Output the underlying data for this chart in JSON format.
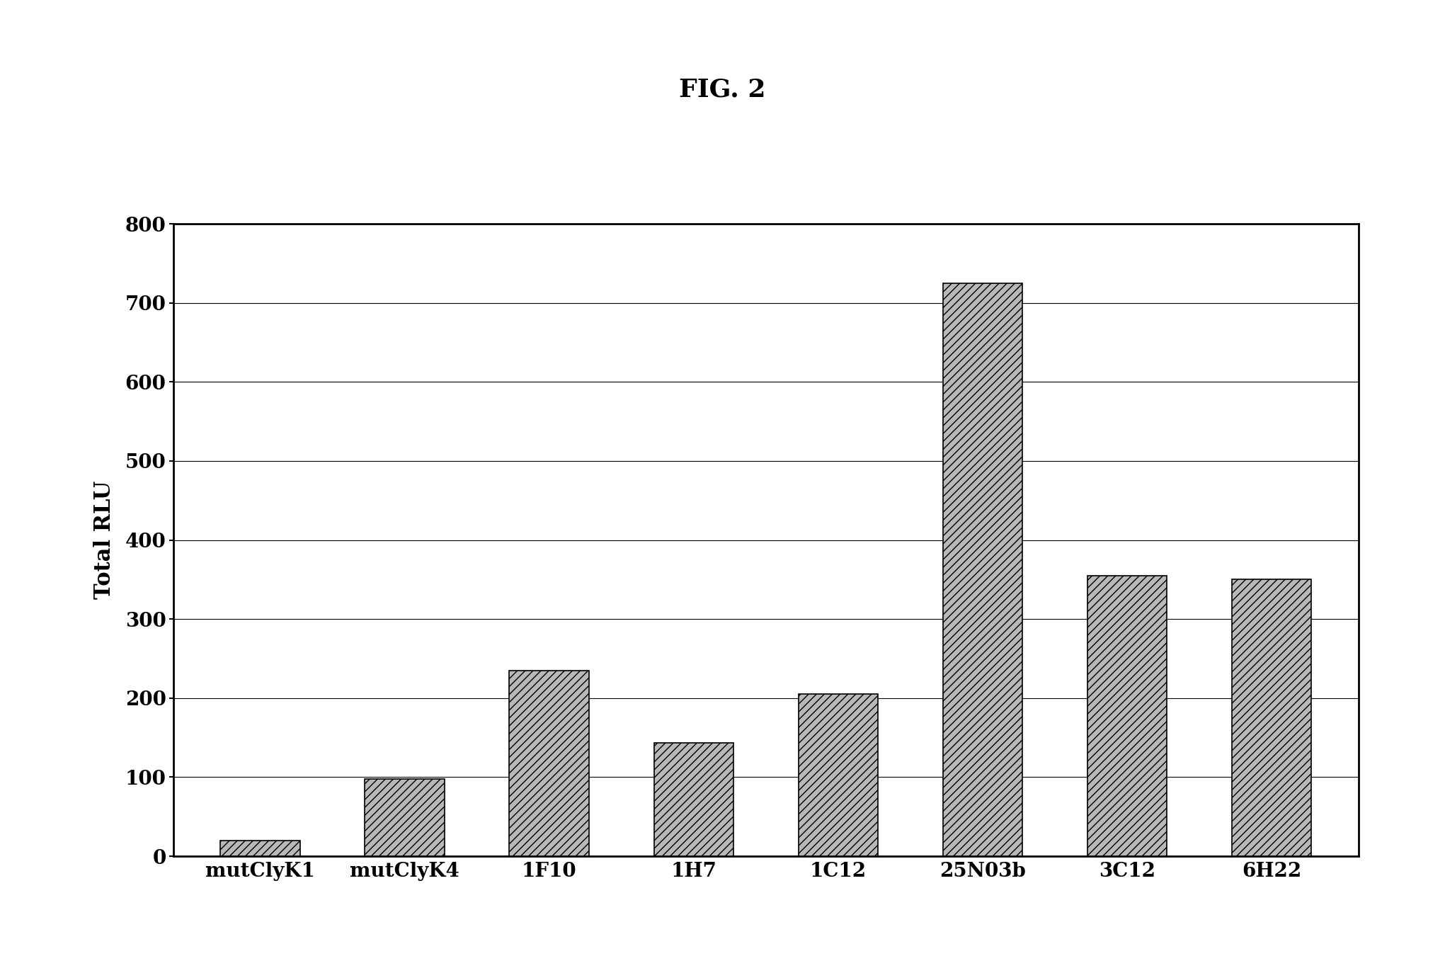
{
  "categories": [
    "mutClyK1",
    "mutClyK4",
    "1F10",
    "1H7",
    "1C12",
    "25N03b",
    "3C12",
    "6H22"
  ],
  "values": [
    20,
    98,
    235,
    143,
    205,
    725,
    355,
    350
  ],
  "bar_color": "#b8b8b8",
  "bar_hatch": "///",
  "title": "FIG. 2",
  "ylabel": "Total RLU",
  "ylim": [
    0,
    800
  ],
  "yticks": [
    0,
    100,
    200,
    300,
    400,
    500,
    600,
    700,
    800
  ],
  "background_color": "#ffffff",
  "plot_bg_color": "#ffffff",
  "title_fontsize": 26,
  "axis_label_fontsize": 22,
  "tick_fontsize": 20,
  "xticklabel_fontsize": 20,
  "bar_width": 0.55
}
